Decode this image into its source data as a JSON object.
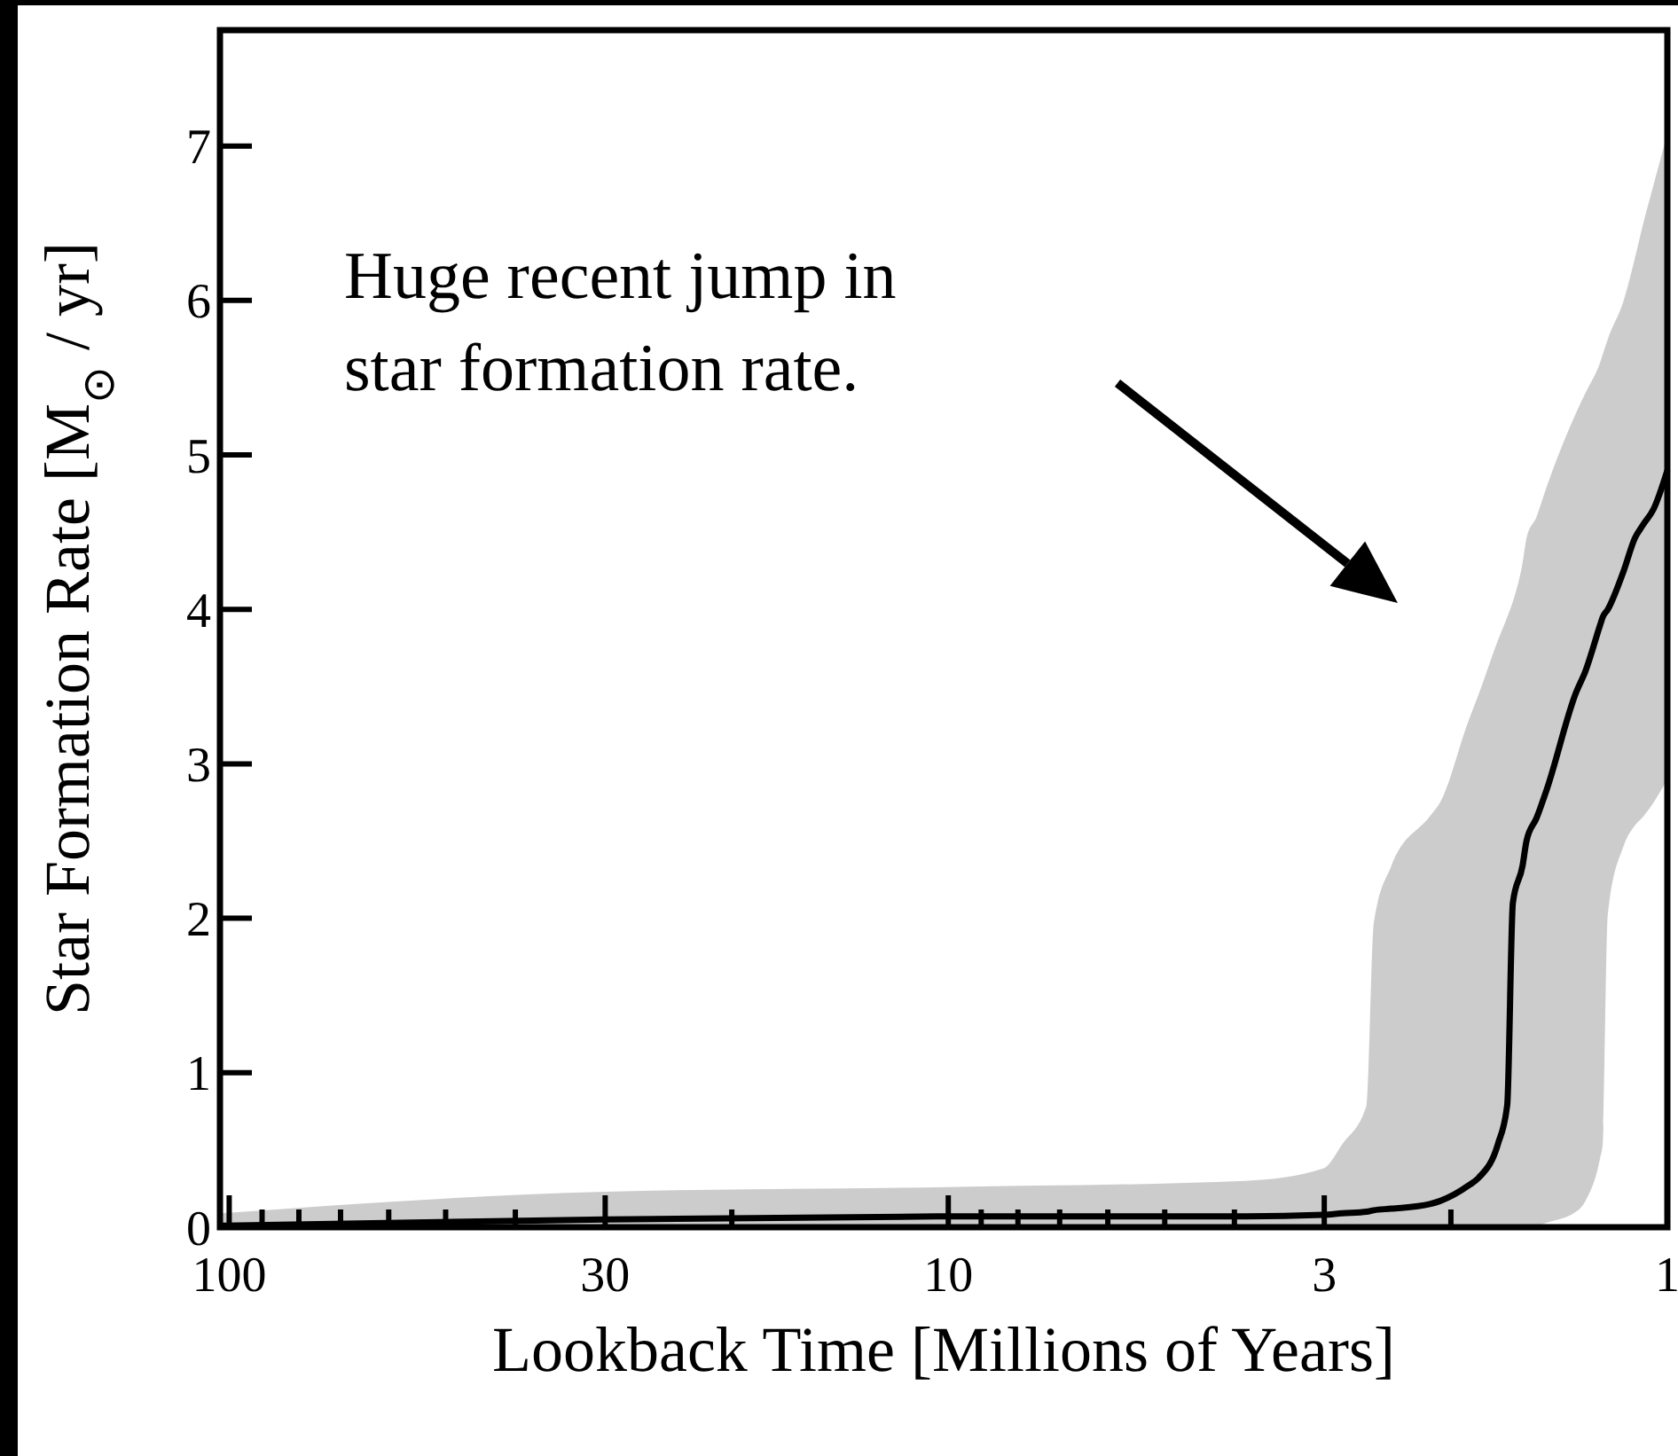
{
  "chart_data": {
    "type": "line",
    "xlabel": "Lookback Time [Millions of Years]",
    "ylabel": "Star Formation Rate [M$_{⊙}$ / yr]",
    "log": "x",
    "xlim": [
      103,
      1
    ],
    "xticks": [
      100,
      {
        "value": 90,
        "label": null
      },
      {
        "value": 80,
        "label": null
      },
      {
        "value": 70,
        "label": null
      },
      {
        "value": 60,
        "label": null
      },
      {
        "value": 50,
        "label": null
      },
      {
        "value": 40,
        "label": null
      },
      30,
      {
        "value": 20,
        "label": null
      },
      10,
      {
        "value": 9,
        "label": null
      },
      {
        "value": 8,
        "label": null
      },
      {
        "value": 7,
        "label": null
      },
      {
        "value": 6,
        "label": null
      },
      {
        "value": 5,
        "label": null
      },
      {
        "value": 4,
        "label": null
      },
      3,
      {
        "value": 2,
        "label": null
      },
      1
    ],
    "ylim": [
      0,
      7.75
    ],
    "yticks": [
      0,
      1,
      2,
      3,
      4,
      5,
      6,
      7
    ],
    "x": [
      103,
      30,
      10,
      3.86,
      3.01,
      2.83,
      2.62,
      2.56,
      2.42,
      2.14,
      2.07,
      1.89,
      1.83,
      1.72,
      1.67,
      1.64,
      1.59,
      1.57,
      1.52,
      1.47,
      1.34,
      1.3,
      1.24,
      1.23,
      1.21,
      1.15,
      1.11,
      1.08,
      1.045,
      1.0
    ],
    "series": [
      {
        "color": "#000000",
        "values": [
          0.01,
          0.05,
          0.07,
          0.07,
          0.08,
          0.09,
          0.1,
          0.11,
          0.12,
          0.15,
          0.17,
          0.27,
          0.32,
          0.54,
          0.79,
          2.1,
          2.34,
          2.5,
          2.65,
          2.84,
          3.46,
          3.6,
          3.9,
          3.95,
          4.0,
          4.25,
          4.46,
          4.55,
          4.65,
          4.9
        ],
        "lower": [
          0,
          0,
          0,
          0,
          0,
          0,
          0,
          0,
          0,
          0,
          0,
          0,
          0,
          0,
          0,
          0,
          0,
          0,
          0.01,
          0.03,
          0.1,
          0.17,
          0.45,
          0.54,
          2.03,
          2.47,
          2.6,
          2.66,
          2.75,
          2.9
        ],
        "upper": [
          0.09,
          0.23,
          0.26,
          0.3,
          0.38,
          0.54,
          0.79,
          1.97,
          2.34,
          2.66,
          2.75,
          3.28,
          3.45,
          3.8,
          3.95,
          4.05,
          4.3,
          4.46,
          4.6,
          4.8,
          5.27,
          5.4,
          5.6,
          5.65,
          5.75,
          6.0,
          6.27,
          6.5,
          6.75,
          7.08
        ]
      }
    ],
    "annotations": [
      "Huge recent jump in\nstar formation rate."
    ],
    "grid": false,
    "marker": "none",
    "line_style": "solid"
  }
}
